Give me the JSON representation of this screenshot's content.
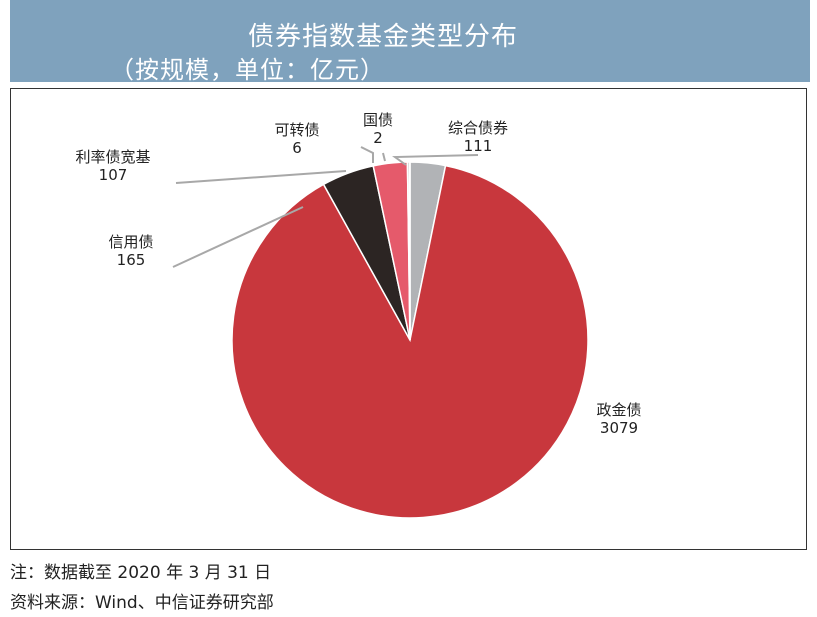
{
  "header": {
    "title": "债券指数基金类型分布",
    "subtitle": "（按规模，单位：亿元）"
  },
  "chart_data": {
    "type": "pie",
    "title": "债券指数基金类型分布",
    "subtitle": "（按规模，单位：亿元）",
    "slices": [
      {
        "label": "综合债券",
        "value": 111,
        "color": "#b1b3b6"
      },
      {
        "label": "政金债",
        "value": 3079,
        "color": "#c8373d"
      },
      {
        "label": "信用债",
        "value": 165,
        "color": "#2c2523"
      },
      {
        "label": "利率债宽基",
        "value": 107,
        "color": "#e55a6b"
      },
      {
        "label": "可转债",
        "value": 6,
        "color": "#9a9b9e"
      },
      {
        "label": "国债",
        "value": 2,
        "color": "#8a8b8e"
      }
    ]
  },
  "footer": {
    "note": "注：数据截至 2020 年 3 月 31 日",
    "source": "资料来源：Wind、中信证券研究部"
  }
}
